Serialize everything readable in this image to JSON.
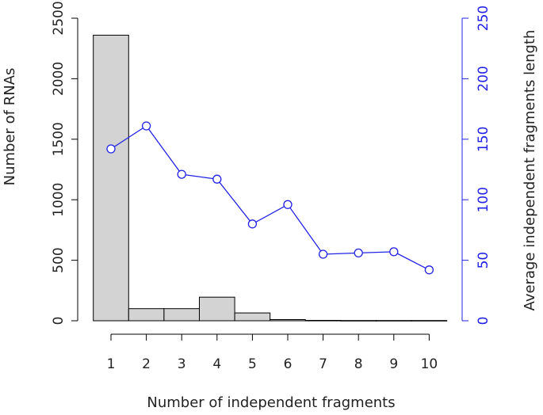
{
  "chart_data": {
    "type": "bar",
    "categories": [
      "1",
      "2",
      "3",
      "4",
      "5",
      "6",
      "7",
      "8",
      "9",
      "10"
    ],
    "series": [
      {
        "chart_type": "bar",
        "axis": "left",
        "values": [
          2360,
          100,
          100,
          195,
          65,
          10,
          3,
          2,
          2,
          2
        ]
      },
      {
        "chart_type": "line",
        "axis": "right",
        "values": [
          142,
          161,
          121,
          117,
          80,
          96,
          55,
          56,
          57,
          42
        ]
      }
    ],
    "xlabel": "Number of independent fragments",
    "ylabel": "Number of RNAs",
    "y2label": "Average independent fragments length",
    "ylim": [
      0,
      2500
    ],
    "y2lim": [
      0,
      250
    ],
    "yticks": [
      0,
      500,
      1000,
      1500,
      2000,
      2500
    ],
    "y2ticks": [
      0,
      50,
      100,
      150,
      200,
      250
    ],
    "colors": {
      "bar_fill": "#d3d3d3",
      "bar_stroke": "#000000",
      "line": "#2222e6"
    },
    "grid": false
  }
}
